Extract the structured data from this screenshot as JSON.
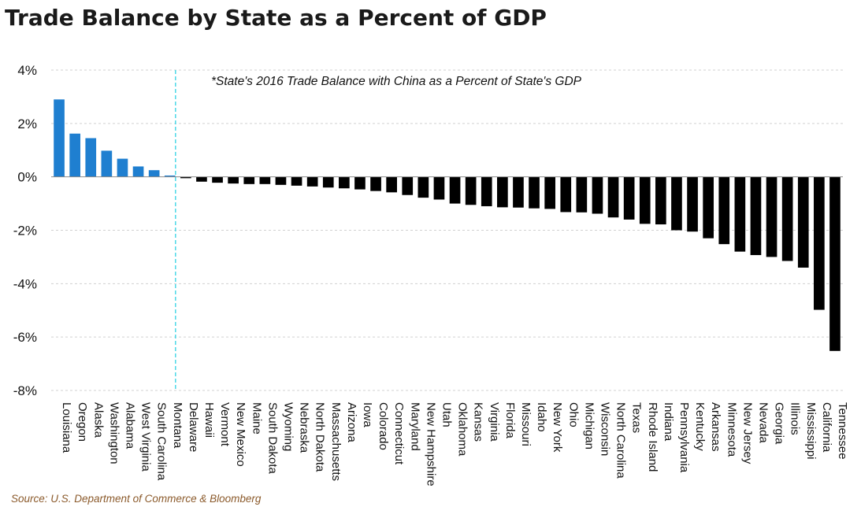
{
  "chart_data": {
    "type": "bar",
    "title": "Trade Balance by State as a Percent of GDP",
    "annotation": "*State's 2016 Trade Balance with China as a Percent of State's GDP",
    "source": "Source: U.S. Department of Commerce & Bloomberg",
    "xlabel": "",
    "ylabel": "",
    "ylim": [
      -8,
      4
    ],
    "yticks": [
      4,
      2,
      0,
      -2,
      -4,
      -6,
      -8
    ],
    "ytick_labels": [
      "4%",
      "2%",
      "0%",
      "-2%",
      "-4%",
      "-6%",
      "-8%"
    ],
    "grid": true,
    "colors": {
      "positive": "#1f7fd0",
      "negative": "#000000",
      "divider": "#4dd9e8",
      "source": "#8b5a2b"
    },
    "categories": [
      "Louisiana",
      "Oregon",
      "Alaska",
      "Washington",
      "Alabama",
      "West Virginia",
      "South Carolina",
      "Montana",
      "Delaware",
      "Hawaii",
      "Vermont",
      "New Mexico",
      "Maine",
      "South Dakota",
      "Wyoming",
      "Nebraska",
      "North Dakota",
      "Massachusetts",
      "Arizona",
      "Iowa",
      "Colorado",
      "Connecticut",
      "Maryland",
      "New Hampshire",
      "Utah",
      "Oklahoma",
      "Kansas",
      "Virginia",
      "Florida",
      "Missouri",
      "Idaho",
      "New York",
      "Ohio",
      "Michigan",
      "Wisconsin",
      "North Carolina",
      "Texas",
      "Rhode Island",
      "Indiana",
      "Pennsylvania",
      "Kentucky",
      "Arkansas",
      "Minnesota",
      "New Jersey",
      "Nevada",
      "Georgia",
      "Illinois",
      "Mississippi",
      "California",
      "Tennessee"
    ],
    "values": [
      2.9,
      1.62,
      1.45,
      0.98,
      0.68,
      0.39,
      0.25,
      0.05,
      -0.05,
      -0.18,
      -0.22,
      -0.25,
      -0.27,
      -0.27,
      -0.3,
      -0.33,
      -0.36,
      -0.4,
      -0.43,
      -0.47,
      -0.53,
      -0.58,
      -0.68,
      -0.78,
      -0.85,
      -1.0,
      -1.05,
      -1.1,
      -1.14,
      -1.15,
      -1.18,
      -1.2,
      -1.32,
      -1.33,
      -1.38,
      -1.52,
      -1.6,
      -1.76,
      -1.78,
      -2.0,
      -2.05,
      -2.3,
      -2.52,
      -2.8,
      -2.93,
      -3.0,
      -3.15,
      -3.4,
      -4.98,
      -6.52
    ]
  }
}
